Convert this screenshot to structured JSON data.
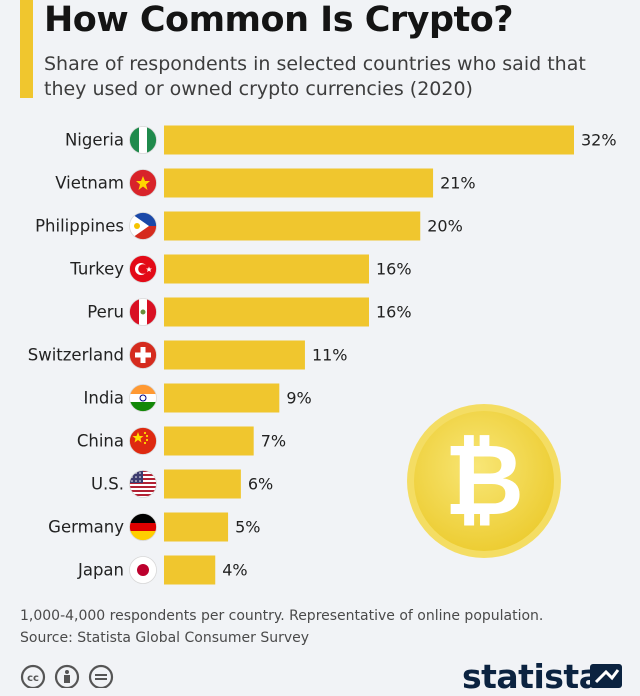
{
  "header": {
    "title": "How Common Is Crypto?",
    "subtitle": "Share of respondents in selected countries who said that they used or owned crypto currencies (2020)"
  },
  "chart_data": {
    "type": "bar",
    "orientation": "horizontal",
    "categories": [
      "Nigeria",
      "Vietnam",
      "Philippines",
      "Turkey",
      "Peru",
      "Switzerland",
      "India",
      "China",
      "U.S.",
      "Germany",
      "Japan"
    ],
    "values": [
      32,
      21,
      20,
      16,
      16,
      11,
      9,
      7,
      6,
      5,
      4
    ],
    "value_labels": [
      "32%",
      "21%",
      "20%",
      "16%",
      "16%",
      "11%",
      "9%",
      "7%",
      "6%",
      "5%",
      "4%"
    ],
    "flags": [
      "nigeria-flag-icon",
      "vietnam-flag-icon",
      "philippines-flag-icon",
      "turkey-flag-icon",
      "peru-flag-icon",
      "switzerland-flag-icon",
      "india-flag-icon",
      "china-flag-icon",
      "us-flag-icon",
      "germany-flag-icon",
      "japan-flag-icon"
    ],
    "xlim": [
      0,
      32
    ],
    "grid": false,
    "bar_color": "#f0c62e"
  },
  "footnote": {
    "line1": "1,000-4,000 respondents per country. Representative of online population.",
    "line2": "Source: Statista Global Consumer Survey"
  },
  "footer": {
    "brand": "statista",
    "license_icons": [
      "cc-icon",
      "by-icon",
      "nd-icon"
    ]
  },
  "illustration": "bitcoin-coin-icon",
  "colors": {
    "accent": "#f0c62e",
    "coin": "#f3d64a",
    "brand": "#0b2340"
  }
}
